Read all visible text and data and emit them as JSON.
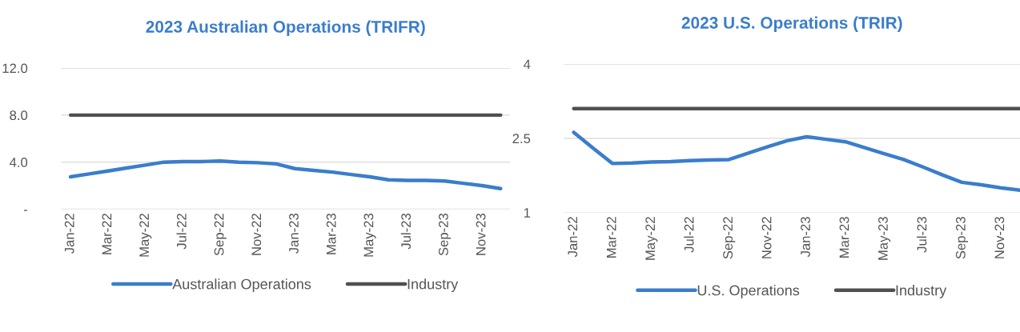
{
  "chart_data": [
    {
      "type": "line",
      "title": "2023 Australian Operations (TRIFR)",
      "categories": [
        "Jan-22",
        null,
        "Mar-22",
        null,
        "May-22",
        null,
        "Jul-22",
        null,
        "Sep-22",
        null,
        "Nov-22",
        null,
        "Jan-23",
        null,
        "Mar-23",
        null,
        "May-23",
        null,
        "Jul-23",
        null,
        "Sep-23",
        null,
        "Nov-23",
        null
      ],
      "series": [
        {
          "name": "Australian Operations",
          "color": "#3a7dcc",
          "values": [
            2.75,
            3.0,
            3.25,
            3.5,
            3.75,
            4.0,
            4.05,
            4.05,
            4.1,
            4.0,
            3.95,
            3.85,
            3.45,
            3.3,
            3.15,
            2.95,
            2.75,
            2.5,
            2.45,
            2.45,
            2.4,
            2.2,
            2.0,
            1.75
          ]
        },
        {
          "name": "Industry",
          "color": "#505050",
          "values": [
            8.0,
            8.0,
            8.0,
            8.0,
            8.0,
            8.0,
            8.0,
            8.0,
            8.0,
            8.0,
            8.0,
            8.0,
            8.0,
            8.0,
            8.0,
            8.0,
            8.0,
            8.0,
            8.0,
            8.0,
            8.0,
            8.0,
            8.0,
            8.0
          ]
        }
      ],
      "ylim": [
        0,
        12
      ],
      "yticks": [
        {
          "value": 0,
          "label": "-"
        },
        {
          "value": 4,
          "label": "4.0"
        },
        {
          "value": 8,
          "label": "8.0"
        },
        {
          "value": 12,
          "label": "12.0"
        }
      ],
      "grid": "y",
      "legend": "bottom",
      "line_style": "solid"
    },
    {
      "type": "line",
      "title": "2023 U.S. Operations (TRIR)",
      "categories": [
        "Jan-22",
        null,
        "Mar-22",
        null,
        "May-22",
        null,
        "Jul-22",
        null,
        "Sep-22",
        null,
        "Nov-22",
        null,
        "Jan-23",
        null,
        "Mar-23",
        null,
        "May-23",
        null,
        "Jul-23",
        null,
        "Sep-23",
        null,
        "Nov-23",
        null
      ],
      "series": [
        {
          "name": "U.S. Operations",
          "color": "#3a7dcc",
          "values": [
            2.62,
            2.3,
            1.99,
            2.0,
            2.02,
            2.03,
            2.05,
            2.06,
            2.07,
            2.2,
            2.33,
            2.45,
            2.53,
            2.48,
            2.43,
            2.31,
            2.19,
            2.07,
            1.92,
            1.76,
            1.61,
            1.56,
            1.5,
            1.45
          ]
        },
        {
          "name": "Industry",
          "color": "#505050",
          "values": [
            3.1,
            3.1,
            3.1,
            3.1,
            3.1,
            3.1,
            3.1,
            3.1,
            3.1,
            3.1,
            3.1,
            3.1,
            3.1,
            3.1,
            3.1,
            3.1,
            3.1,
            3.1,
            3.1,
            3.1,
            3.1,
            3.1,
            3.1,
            3.1
          ]
        }
      ],
      "ylim": [
        1,
        4
      ],
      "yticks": [
        1,
        2.5,
        4
      ],
      "grid": "y",
      "legend": "bottom",
      "line_style": "solid"
    }
  ]
}
